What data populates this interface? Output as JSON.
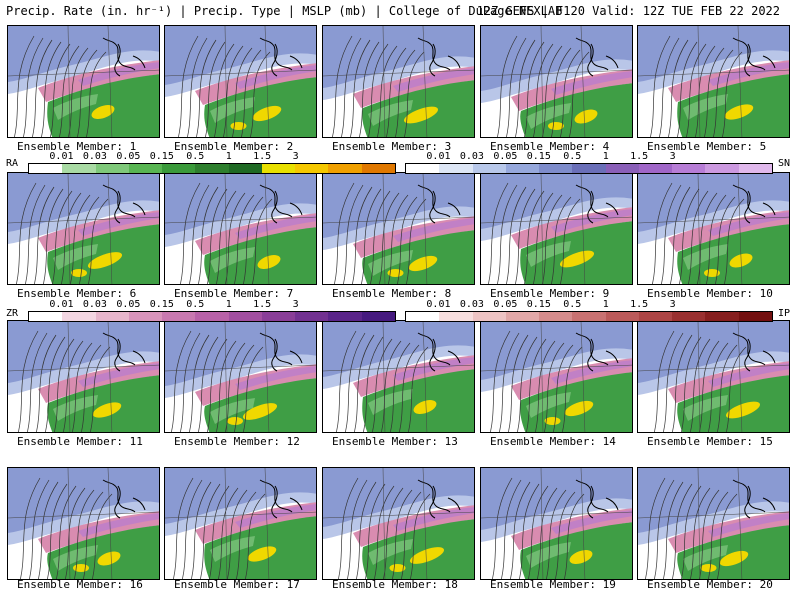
{
  "header": {
    "left": "Precip. Rate (in. hr⁻¹) | Precip. Type | MSLP (mb) | College of DuPage NEXLAB",
    "right": "12Z GEFS | F120 Valid: 12Z TUE FEB 22 2022"
  },
  "members": [
    "Ensemble Member: 1",
    "Ensemble Member: 2",
    "Ensemble Member: 3",
    "Ensemble Member: 4",
    "Ensemble Member: 5",
    "Ensemble Member: 6",
    "Ensemble Member: 7",
    "Ensemble Member: 8",
    "Ensemble Member: 9",
    "Ensemble Member: 10",
    "Ensemble Member: 11",
    "Ensemble Member: 12",
    "Ensemble Member: 13",
    "Ensemble Member: 14",
    "Ensemble Member: 15",
    "Ensemble Member: 16",
    "Ensemble Member: 17",
    "Ensemble Member: 18",
    "Ensemble Member: 19",
    "Ensemble Member: 20"
  ],
  "legends": {
    "rain": {
      "tag": "RA",
      "ticks": [
        "0.01",
        "0.03",
        "0.05",
        "0.15",
        "0.5",
        "1",
        "1.5",
        "3"
      ],
      "colors": [
        "#ffffff",
        "#a9dba4",
        "#7fc97a",
        "#58b552",
        "#3a9a3a",
        "#2e7f2e",
        "#1f6a24",
        "#e8e000",
        "#f5c800",
        "#f0a000",
        "#e07800"
      ]
    },
    "snow": {
      "tag": "SN",
      "ticks": [
        "0.01",
        "0.03",
        "0.05",
        "0.15",
        "0.5",
        "1",
        "1.5",
        "3"
      ],
      "colors": [
        "#ffffff",
        "#dde6f5",
        "#b8c8ea",
        "#96a8dc",
        "#7e8ccb",
        "#6a6fb8",
        "#8a5fb8",
        "#a066c8",
        "#b77dd6",
        "#cc99e0",
        "#e0b8ec"
      ]
    },
    "zr": {
      "tag": "ZR",
      "ticks": [
        "0.01",
        "0.03",
        "0.05",
        "0.15",
        "0.5",
        "1",
        "1.5",
        "3"
      ],
      "colors": [
        "#ffffff",
        "#f3d6e2",
        "#e7b6cc",
        "#d894bb",
        "#c879b0",
        "#b862a8",
        "#a24fa0",
        "#8a3e98",
        "#723191",
        "#5a2489",
        "#461a7f"
      ]
    },
    "ip": {
      "tag": "IP",
      "ticks": [
        "0.01",
        "0.03",
        "0.05",
        "0.15",
        "0.5",
        "1",
        "1.5",
        "3"
      ],
      "colors": [
        "#ffffff",
        "#f7dede",
        "#eec4c4",
        "#e2a8a8",
        "#d58c8c",
        "#c97272",
        "#bb5a5a",
        "#ad4545",
        "#9a3030",
        "#861e1e",
        "#730f0f"
      ]
    }
  },
  "map_colors": {
    "snow": "#8a9ad2",
    "snow_light": "#b9c6e8",
    "mix": "#d98cb0",
    "mix_dark": "#b77ad0",
    "rain": "#3f9e45",
    "rain_light": "#7cc27a",
    "heavy": "#f0d800",
    "land": "#ffffff"
  }
}
